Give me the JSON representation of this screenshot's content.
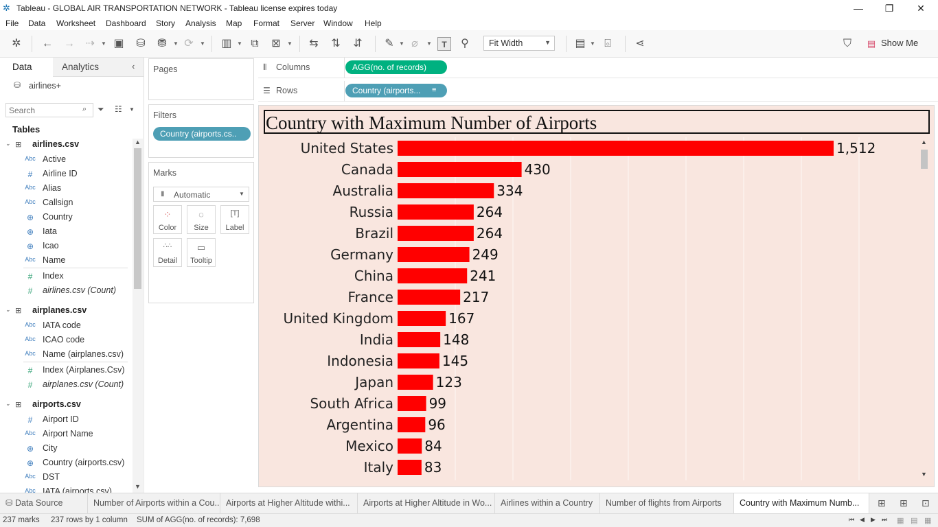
{
  "window": {
    "title": "Tableau - GLOBAL AIR TRANSPORTATION NETWORK - Tableau license expires today"
  },
  "menu": [
    "File",
    "Data",
    "Worksheet",
    "Dashboard",
    "Story",
    "Analysis",
    "Map",
    "Format",
    "Server",
    "Window",
    "Help"
  ],
  "toolbar": {
    "fit_label": "Fit Width",
    "show_me_label": "Show Me"
  },
  "data_pane": {
    "tab_data": "Data",
    "tab_analytics": "Analytics",
    "datasource": "airlines+",
    "search_placeholder": "Search",
    "tables_label": "Tables",
    "tables": [
      {
        "name": "airlines.csv",
        "fields": [
          {
            "type": "Abc",
            "name": "Active"
          },
          {
            "type": "#",
            "name": "Airline ID"
          },
          {
            "type": "Abc",
            "name": "Alias"
          },
          {
            "type": "Abc",
            "name": "Callsign"
          },
          {
            "type": "globe",
            "name": "Country"
          },
          {
            "type": "globe",
            "name": "Iata"
          },
          {
            "type": "globe",
            "name": "Icao"
          },
          {
            "type": "Abc",
            "name": "Name"
          },
          {
            "type": "#",
            "name": "Index"
          },
          {
            "type": "#",
            "name": "airlines.csv (Count)"
          }
        ]
      },
      {
        "name": "airplanes.csv",
        "fields": [
          {
            "type": "Abc",
            "name": "IATA code"
          },
          {
            "type": "Abc",
            "name": "ICAO code"
          },
          {
            "type": "Abc",
            "name": "Name (airplanes.csv)"
          },
          {
            "type": "#",
            "name": "Index (Airplanes.Csv)"
          },
          {
            "type": "#",
            "name": "airplanes.csv (Count)"
          }
        ]
      },
      {
        "name": "airports.csv",
        "fields": [
          {
            "type": "#",
            "name": "Airport ID"
          },
          {
            "type": "Abc",
            "name": "Airport Name"
          },
          {
            "type": "globe",
            "name": "City"
          },
          {
            "type": "globe",
            "name": "Country (airports.csv)"
          },
          {
            "type": "Abc",
            "name": "DST"
          },
          {
            "type": "Abc",
            "name": "IATA (airports.csv)"
          }
        ]
      }
    ]
  },
  "shelves": {
    "pages_label": "Pages",
    "filters_label": "Filters",
    "filter_pill": "Country (airports.cs..",
    "marks_label": "Marks",
    "mark_type": "Automatic",
    "mark_buttons": [
      "Color",
      "Size",
      "Label",
      "Detail",
      "Tooltip"
    ],
    "columns_label": "Columns",
    "columns_pill": "AGG(no. of records)",
    "rows_label": "Rows",
    "rows_pill": "Country (airports..."
  },
  "chart_data": {
    "type": "bar",
    "orientation": "horizontal",
    "title": "Country with Maximum Number of Airports",
    "categories": [
      "United States",
      "Canada",
      "Australia",
      "Russia",
      "Brazil",
      "Germany",
      "China",
      "France",
      "United Kingdom",
      "India",
      "Indonesia",
      "Japan",
      "South Africa",
      "Argentina",
      "Mexico",
      "Italy"
    ],
    "values": [
      1512,
      430,
      334,
      264,
      264,
      249,
      241,
      217,
      167,
      148,
      145,
      123,
      99,
      96,
      84,
      83
    ],
    "value_labels": [
      "1,512",
      "430",
      "334",
      "264",
      "264",
      "249",
      "241",
      "217",
      "167",
      "148",
      "145",
      "123",
      "99",
      "96",
      "84",
      "83"
    ],
    "xlim": [
      0,
      1800
    ],
    "bar_color": "#ff0000",
    "background_color": "#f9e6df",
    "grid": true
  },
  "sheet_tabs": {
    "data_source_label": "Data Source",
    "tabs": [
      "Number of Airports within a Cou...",
      "Airports at Higher Altitude withi...",
      "Airports at Higher Altitude in Wo...",
      "Airlines within a Country",
      "Number of flights from Airports",
      "Country with Maximum Numb..."
    ],
    "active_index": 5
  },
  "status": {
    "marks": "237 marks",
    "rows_cols": "237 rows by 1 column",
    "sum": "SUM of AGG(no. of records): 7,698"
  },
  "colors": {
    "pill_dimension": "#4e9fb5",
    "pill_measure": "#00b180",
    "field_icon": "#3e7dbd"
  }
}
